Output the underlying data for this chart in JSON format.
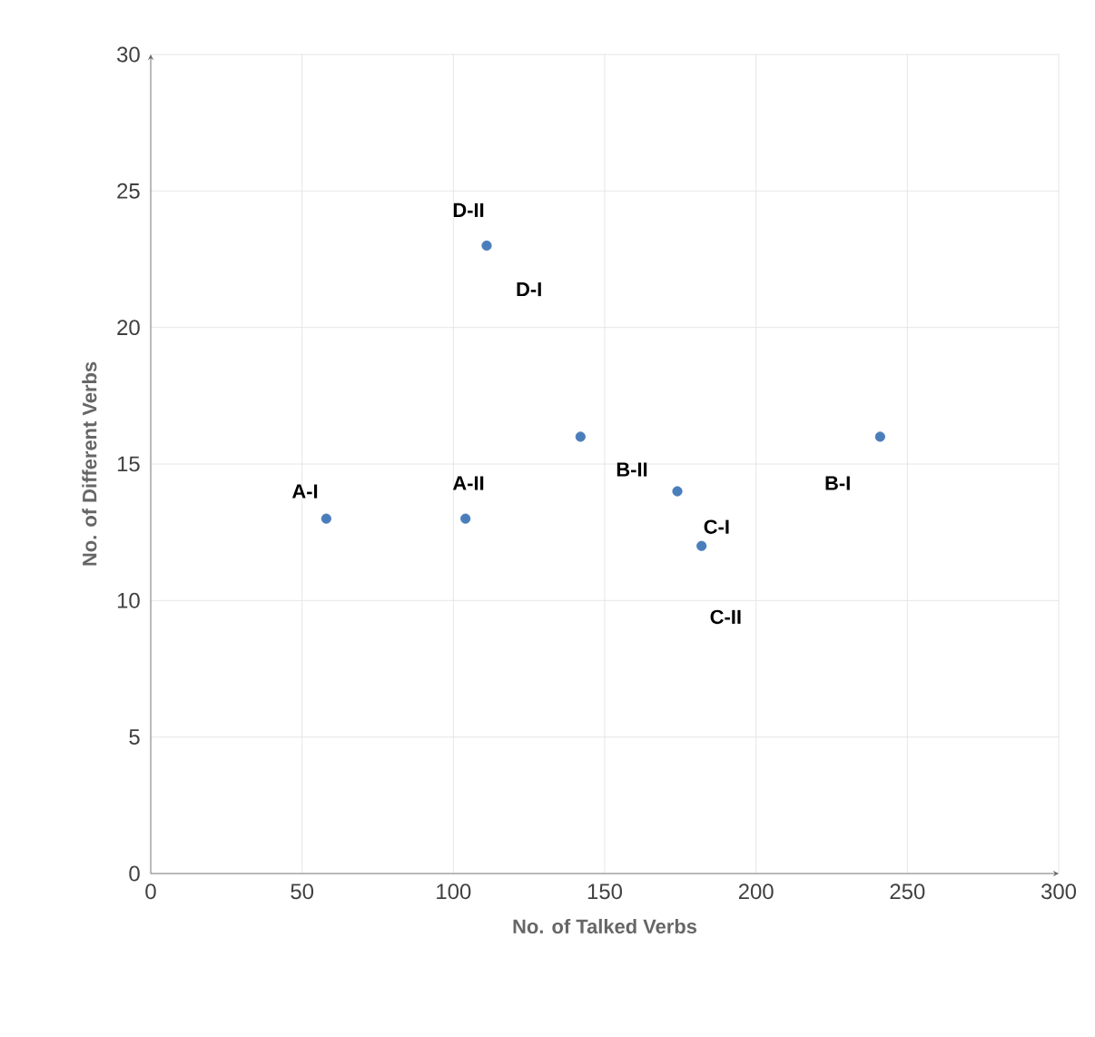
{
  "chart_data": {
    "type": "scatter",
    "xlabel": "No. of  Talked Verbs",
    "ylabel": "No. of  Different Verbs",
    "x": [
      58,
      104,
      111,
      142,
      174,
      182,
      241
    ],
    "values": [
      13,
      13,
      23,
      16,
      14,
      12,
      16
    ],
    "color": "#4a7ebb",
    "grid": true,
    "xlim": [
      0,
      300
    ],
    "xticks": [
      0,
      50,
      100,
      150,
      200,
      250,
      300
    ],
    "ylim": [
      0,
      30
    ],
    "yticks": [
      0,
      5,
      10,
      15,
      20,
      25,
      30
    ],
    "annotations": [
      "A-I",
      "A-II",
      "D-II",
      "D-I",
      "B-II",
      "C-I",
      "C-II",
      "B-I"
    ]
  }
}
